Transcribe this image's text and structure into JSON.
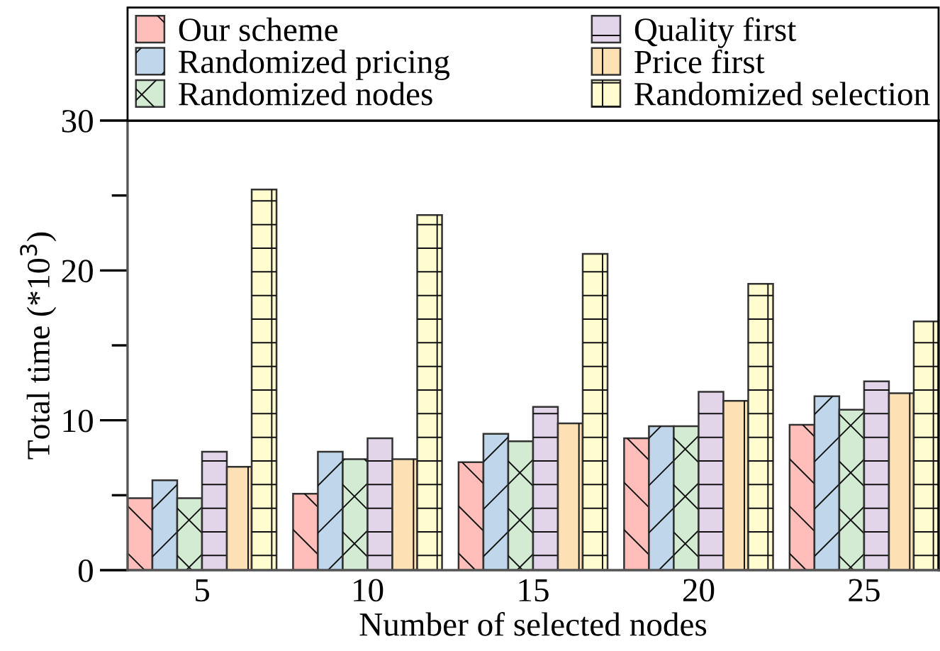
{
  "chart_data": {
    "type": "bar",
    "xlabel": "Number of selected nodes",
    "ylabel": "Total time (*10$^{3}$)",
    "categories": [
      "5",
      "10",
      "15",
      "20",
      "25"
    ],
    "series": [
      {
        "name": "Our scheme",
        "color": "#ffbeb9",
        "values": [
          4.8,
          5.1,
          7.2,
          8.8,
          9.7
        ]
      },
      {
        "name": "Randomized pricing",
        "color": "#c0d6ea",
        "values": [
          6.0,
          7.9,
          9.1,
          9.6,
          11.6
        ]
      },
      {
        "name": "Randomized nodes",
        "color": "#d3ebd3",
        "values": [
          4.8,
          7.4,
          8.6,
          9.6,
          10.7
        ]
      },
      {
        "name": "Quality first",
        "color": "#e3d5e9",
        "values": [
          7.9,
          8.8,
          10.9,
          11.9,
          12.6
        ]
      },
      {
        "name": "Price first",
        "color": "#fde0b3",
        "values": [
          6.9,
          7.4,
          9.8,
          11.3,
          11.8
        ]
      },
      {
        "name": "Randomized selection",
        "color": "#fffdd0",
        "values": [
          25.4,
          23.7,
          21.1,
          19.1,
          16.6
        ]
      }
    ],
    "ylim": [
      0,
      30
    ],
    "yticks": [
      0,
      {
        "value": 5,
        "label": null
      },
      10,
      {
        "value": 15,
        "label": null
      },
      20,
      {
        "value": 25,
        "label": null
      },
      30
    ],
    "legend": "top"
  }
}
